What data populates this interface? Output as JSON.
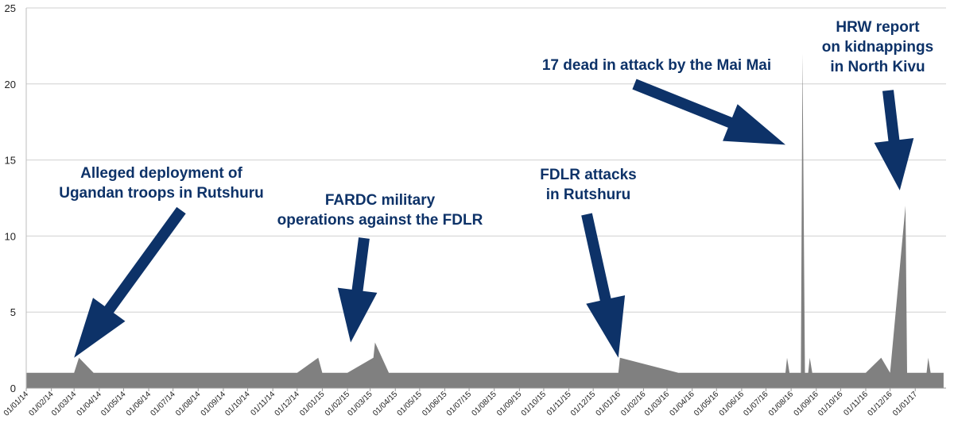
{
  "chart_data": {
    "type": "area",
    "title": "",
    "xlabel": "",
    "ylabel": "",
    "ylim": [
      0,
      25
    ],
    "yticks": [
      0,
      5,
      10,
      15,
      20,
      25
    ],
    "grid": true,
    "fill_color": "#808080",
    "annotation_color": "#0d3268",
    "xtick_labels": [
      "01/01/14",
      "01/02/14",
      "01/03/14",
      "01/04/14",
      "01/05/14",
      "01/06/14",
      "01/07/14",
      "01/08/14",
      "01/09/14",
      "01/10/14",
      "01/11/14",
      "01/12/14",
      "01/01/15",
      "01/02/15",
      "01/03/15",
      "01/04/15",
      "01/05/15",
      "01/06/15",
      "01/07/15",
      "01/08/15",
      "01/09/15",
      "01/10/15",
      "01/11/15",
      "01/12/15",
      "01/01/16",
      "01/02/16",
      "01/03/16",
      "01/04/16",
      "01/05/16",
      "01/06/16",
      "01/07/16",
      "01/08/16",
      "01/09/16",
      "01/10/16",
      "01/11/16",
      "01/12/16",
      "01/01/17"
    ],
    "series": [
      {
        "x": [
          "2014-01-01",
          "2014-03-01",
          "2014-03-07",
          "2014-03-25",
          "2014-12-01",
          "2014-12-27",
          "2015-01-01",
          "2015-02-01",
          "2015-03-05",
          "2015-03-07",
          "2015-03-24",
          "2016-01-01",
          "2016-01-03",
          "2016-03-15",
          "2016-07-25",
          "2016-07-27",
          "2016-07-30",
          "2016-08-13",
          "2016-08-15",
          "2016-08-18",
          "2016-08-22",
          "2016-08-24",
          "2016-08-27",
          "2016-09-10",
          "2016-11-01",
          "2016-11-20",
          "2016-12-01",
          "2016-12-20",
          "2016-12-22",
          "2017-01-03",
          "2017-01-15",
          "2017-01-17",
          "2017-01-20",
          "2017-02-05"
        ],
        "values": [
          1,
          1,
          2,
          1,
          1,
          2,
          1,
          1,
          2,
          3,
          1,
          1,
          2,
          1,
          1,
          2,
          1,
          1,
          22,
          1,
          1,
          2,
          1,
          1,
          1,
          2,
          1,
          12,
          1,
          1,
          1,
          2,
          1,
          1
        ]
      }
    ],
    "annotations": [
      {
        "lines": [
          "Alleged deployment of",
          "Ugandan troops in Rutshuru"
        ],
        "target_date": "2014-03-01",
        "target_value": 2
      },
      {
        "lines": [
          "FARDC military",
          "operations against the FDLR"
        ],
        "target_date": "2015-02-05",
        "target_value": 3
      },
      {
        "lines": [
          "FDLR attacks",
          "in Rutshuru"
        ],
        "target_date": "2016-01-01",
        "target_value": 2
      },
      {
        "lines": [
          "17 dead in attack by the Mai Mai"
        ],
        "target_date": "2016-07-25",
        "target_value": 16
      },
      {
        "lines": [
          "HRW report",
          "on kidnappings",
          "in North Kivu"
        ],
        "target_date": "2016-12-13",
        "target_value": 13
      }
    ]
  }
}
